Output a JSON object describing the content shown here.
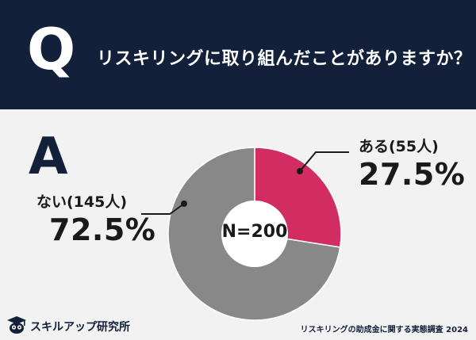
{
  "header": {
    "q": "Q",
    "question": "リスキリングに取り組んだことがありますか？"
  },
  "answer_letter": "A",
  "center_label": "N=200",
  "labels": {
    "yes": {
      "name": "ある(55人)",
      "pct": "27.5%"
    },
    "no": {
      "name": "ない(145人)",
      "pct": "72.5%"
    }
  },
  "brand": {
    "name": "スキルアップ研究所",
    "icon": "graduation-owl-icon"
  },
  "footer": "リスキリングの助成金に関する実態調査 2024",
  "colors": {
    "yes": "#d12d62",
    "no": "#888888",
    "header_bg": "#12203a"
  },
  "chart_data": {
    "type": "pie",
    "title": "リスキリングに取り組んだことがありますか？",
    "center_text": "N=200",
    "series": [
      {
        "name": "ある",
        "count": 55,
        "value": 27.5
      },
      {
        "name": "ない",
        "count": 145,
        "value": 72.5
      }
    ],
    "total": 200
  }
}
